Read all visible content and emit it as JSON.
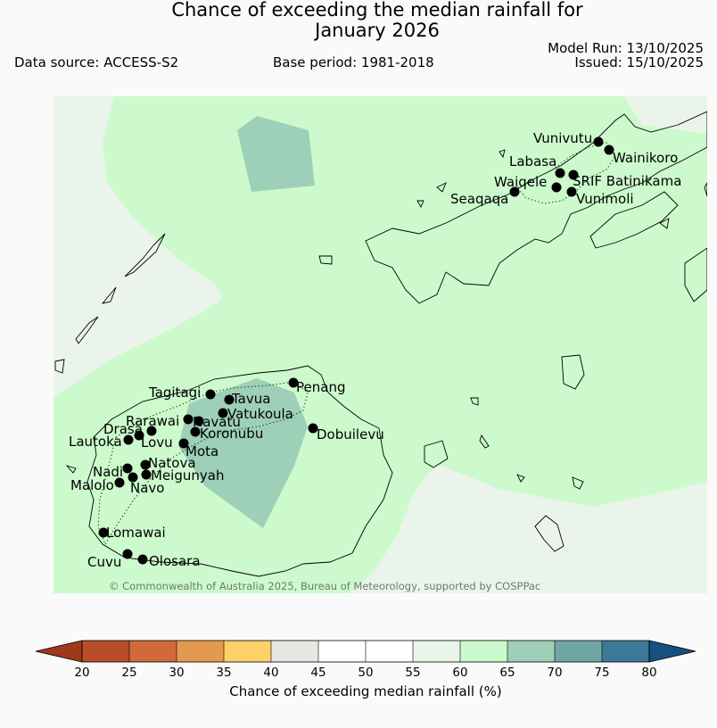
{
  "title_line1": "Chance of exceeding the median rainfall for",
  "title_line2": "January 2026",
  "data_source": "Data source: ACCESS-S2",
  "base_period": "Base period: 1981-2018",
  "model_run": "Model Run: 13/10/2025",
  "issued": "Issued: 15/10/2025",
  "copyright": "© Commonwealth of Australia 2025, Bureau of Meteorology, supported by COSPPac",
  "colorbar": {
    "label": "Chance of exceeding median rainfall (%)",
    "ticks": [
      "20",
      "25",
      "30",
      "35",
      "40",
      "45",
      "50",
      "55",
      "60",
      "65",
      "70",
      "75",
      "80"
    ],
    "colors": [
      "#a0391c",
      "#b84e27",
      "#d1693a",
      "#e5994f",
      "#fdd06a",
      "#e8e8e3",
      "#ffffff",
      "#ffffff",
      "#e8f5e8",
      "#ccfacc",
      "#9ecfb8",
      "#6fa6a5",
      "#3d7899",
      "#174f80"
    ]
  },
  "map": {
    "colors": {
      "background": "#eaf4ea",
      "band_60_65": "#ccfacc",
      "band_65_70": "#9ecfb8",
      "land_outline": "#000000",
      "district_outline": "#1a4a1a",
      "station": "#000000"
    },
    "stations": [
      {
        "name": "Vunivutu"
      },
      {
        "name": "Wainikoro"
      },
      {
        "name": "Labasa"
      },
      {
        "name": "SRIF Batinikama"
      },
      {
        "name": "Waiqele"
      },
      {
        "name": "Vunimoli"
      },
      {
        "name": "Seaqaqa"
      },
      {
        "name": "Tagitagi"
      },
      {
        "name": "Tavua"
      },
      {
        "name": "Penang"
      },
      {
        "name": "Vatukoula"
      },
      {
        "name": "Rarawai"
      },
      {
        "name": "Navatu"
      },
      {
        "name": "Drasa"
      },
      {
        "name": "Koronubu"
      },
      {
        "name": "Dobuilevu"
      },
      {
        "name": "Lautoka"
      },
      {
        "name": "Lovu"
      },
      {
        "name": "Mota"
      },
      {
        "name": "Natova"
      },
      {
        "name": "Nadi"
      },
      {
        "name": "Meigunyah"
      },
      {
        "name": "Malolo"
      },
      {
        "name": "Navo"
      },
      {
        "name": "Lomawai"
      },
      {
        "name": "Cuvu"
      },
      {
        "name": "Olosara"
      }
    ]
  }
}
